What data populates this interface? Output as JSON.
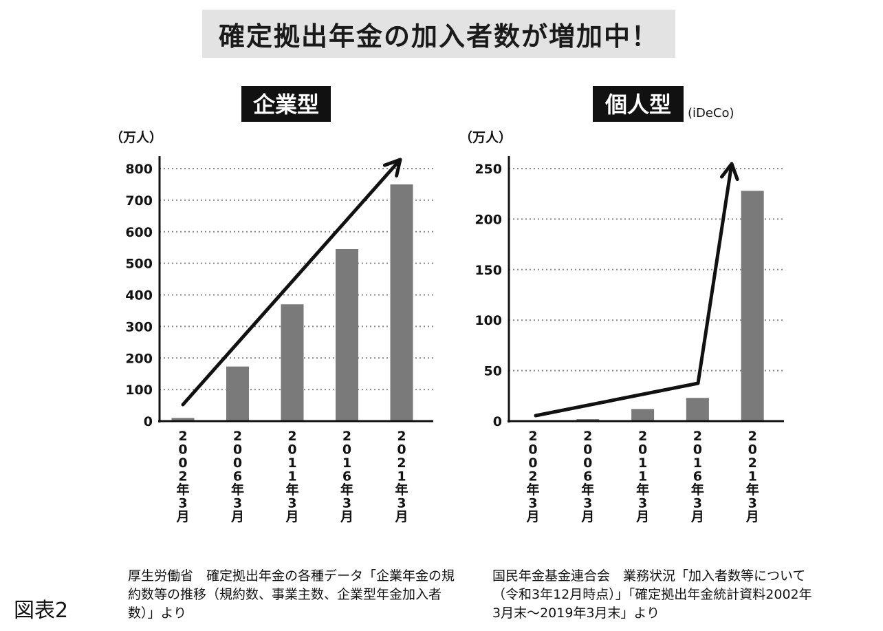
{
  "page": {
    "banner": "確定拠出年金の加入者数が増加中！",
    "figure_label": "図表2"
  },
  "chart_data": [
    {
      "type": "bar",
      "title": "企業型",
      "ylabel": "（万人）",
      "categories": [
        "2002年3月",
        "2006年3月",
        "2011年3月",
        "2016年3月",
        "2021年3月"
      ],
      "values": [
        10,
        173,
        370,
        545,
        750
      ],
      "yticks": [
        0,
        100,
        200,
        300,
        400,
        500,
        600,
        700,
        800
      ],
      "ylim": [
        0,
        800
      ],
      "grid": true,
      "bar_color": "#7a7a7a",
      "trend_arrow": true,
      "source": "厚生労働省　確定拠出年金の各種データ「企業年金の規約数等の推移（規約数、事業主数、企業型年金加入者数）」より"
    },
    {
      "type": "bar",
      "title": "個人型",
      "subtitle": "(iDeCo)",
      "ylabel": "（万人）",
      "categories": [
        "2002年3月",
        "2006年3月",
        "2011年3月",
        "2016年3月",
        "2021年3月"
      ],
      "values": [
        0.5,
        2,
        12,
        23,
        228
      ],
      "yticks": [
        0,
        50,
        100,
        150,
        200,
        250
      ],
      "ylim": [
        0,
        250
      ],
      "grid": true,
      "bar_color": "#7a7a7a",
      "trend_arrow": true,
      "source": "国民年金基金連合会　業務状況「加入者数等について（令和3年12月時点）」「確定拠出年金統計資料2002年3月末～2019年3月末」より"
    }
  ]
}
